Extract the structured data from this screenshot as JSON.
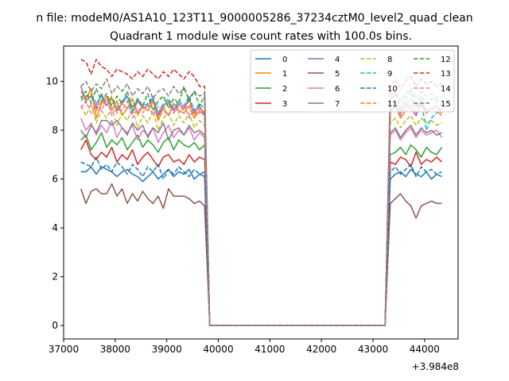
{
  "suptitle": "n file: modeM0/AS1A10_123T11_9000005286_37234cztM0_level2_quad_clean",
  "chart_data": {
    "type": "line",
    "title": "Quadrant 1 module wise count rates with 100.0s bins.",
    "xlabel": "",
    "ylabel": "",
    "x_offset_label": "+3.984e8",
    "xlim": [
      37000,
      44650
    ],
    "ylim": [
      -0.55,
      11.45
    ],
    "xticks": [
      37000,
      38000,
      39000,
      40000,
      41000,
      42000,
      43000,
      44000
    ],
    "yticks": [
      0,
      2,
      4,
      6,
      8,
      10
    ],
    "grid": false,
    "legend_position": "top-right",
    "legend_columns": 4,
    "segments": [
      {
        "x_start": 37334,
        "count": 25,
        "step": 100
      },
      {
        "x_start": 43334,
        "count": 11,
        "step": 100
      }
    ],
    "gap_x": [
      39834,
      43234
    ],
    "gap_value": 0,
    "series": [
      {
        "name": "0",
        "color": "#1f77b4",
        "dash": "solid",
        "values": [
          6.3,
          6.3,
          6.5,
          6.2,
          6.5,
          6.4,
          6.3,
          6.1,
          6.3,
          6.4,
          6.2,
          6.1,
          5.9,
          6.1,
          6.3,
          6.0,
          6.2,
          6.4,
          6.1,
          6.3,
          6.2,
          6.4,
          6.0,
          6.2,
          6.1,
          6.0,
          6.2,
          6.3,
          6.1,
          6.4,
          6.2,
          6.1,
          6.3,
          6.0,
          6.2,
          6.1
        ]
      },
      {
        "name": "1",
        "color": "#ff7f0e",
        "dash": "solid",
        "values": [
          9.6,
          9.3,
          9.7,
          8.5,
          9.1,
          9.4,
          8.8,
          9.2,
          8.6,
          8.9,
          9.3,
          8.7,
          9.0,
          8.8,
          9.2,
          8.4,
          8.9,
          8.6,
          9.1,
          8.8,
          8.7,
          9.0,
          8.5,
          8.8,
          8.6,
          8.7,
          9.0,
          8.5,
          8.8,
          8.9,
          8.6,
          9.1,
          8.7,
          8.9,
          8.8,
          8.6
        ]
      },
      {
        "name": "2",
        "color": "#2ca02c",
        "dash": "solid",
        "values": [
          7.6,
          7.8,
          7.2,
          7.5,
          7.9,
          7.3,
          7.6,
          7.4,
          7.7,
          7.2,
          7.5,
          7.8,
          7.3,
          7.6,
          7.4,
          7.1,
          7.5,
          7.7,
          7.2,
          7.6,
          7.4,
          7.3,
          7.5,
          7.2,
          7.4,
          7.0,
          7.1,
          7.3,
          7.0,
          7.4,
          7.2,
          6.9,
          7.3,
          7.1,
          7.0,
          7.3
        ]
      },
      {
        "name": "3",
        "color": "#d62728",
        "dash": "solid",
        "values": [
          7.2,
          7.6,
          7.0,
          6.8,
          7.1,
          6.9,
          7.3,
          6.7,
          7.0,
          6.8,
          7.2,
          6.6,
          6.9,
          7.1,
          6.8,
          6.5,
          6.9,
          7.0,
          6.7,
          6.8,
          6.6,
          7.0,
          6.7,
          6.9,
          6.8,
          6.7,
          6.6,
          6.9,
          6.8,
          6.5,
          7.1,
          6.6,
          6.8,
          6.7,
          6.9,
          6.7
        ]
      },
      {
        "name": "4",
        "color": "#9467bd",
        "dash": "solid",
        "values": [
          9.8,
          9.2,
          9.4,
          8.9,
          9.5,
          9.0,
          9.3,
          8.8,
          9.1,
          9.4,
          8.7,
          9.2,
          8.9,
          9.0,
          9.3,
          8.6,
          9.0,
          9.2,
          8.8,
          9.1,
          8.9,
          9.3,
          8.7,
          9.0,
          8.6,
          8.8,
          9.0,
          8.7,
          9.1,
          8.9,
          8.6,
          9.2,
          8.8,
          8.9,
          9.0,
          8.7
        ]
      },
      {
        "name": "5",
        "color": "#8c564b",
        "dash": "solid",
        "values": [
          5.6,
          5.0,
          5.5,
          5.6,
          5.4,
          5.4,
          5.8,
          5.3,
          5.6,
          5.0,
          5.4,
          5.1,
          5.5,
          5.2,
          5.0,
          5.3,
          4.8,
          5.6,
          5.3,
          5.3,
          5.3,
          5.2,
          5.0,
          5.1,
          4.9,
          5.0,
          5.2,
          5.4,
          5.1,
          4.9,
          4.4,
          4.9,
          5.0,
          5.1,
          5.0,
          5.0
        ]
      },
      {
        "name": "6",
        "color": "#e377c2",
        "dash": "solid",
        "values": [
          8.5,
          8.0,
          8.3,
          7.8,
          8.2,
          7.9,
          8.4,
          7.7,
          8.1,
          7.9,
          8.2,
          7.6,
          8.0,
          7.8,
          8.1,
          7.5,
          7.9,
          8.2,
          7.7,
          8.0,
          7.8,
          8.1,
          7.6,
          7.9,
          7.7,
          7.8,
          8.0,
          7.6,
          7.9,
          8.1,
          7.7,
          8.0,
          7.8,
          7.9,
          8.0,
          7.7
        ]
      },
      {
        "name": "7",
        "color": "#7f7f7f",
        "dash": "solid",
        "values": [
          8.0,
          7.7,
          8.2,
          7.9,
          8.4,
          8.4,
          8.2,
          8.4,
          8.1,
          7.8,
          8.3,
          8.0,
          8.2,
          7.7,
          8.1,
          7.9,
          8.3,
          7.6,
          8.0,
          8.1,
          7.8,
          8.2,
          7.9,
          8.0,
          7.8,
          7.9,
          8.1,
          7.7,
          8.0,
          8.2,
          7.8,
          8.1,
          7.9,
          8.0,
          7.8,
          7.9
        ]
      },
      {
        "name": "8",
        "color": "#bcbd22",
        "dash": "dashed",
        "values": [
          9.0,
          8.6,
          9.1,
          8.3,
          8.8,
          8.5,
          8.9,
          8.2,
          8.7,
          8.4,
          8.9,
          8.1,
          8.6,
          8.3,
          8.8,
          8.0,
          8.5,
          8.7,
          8.2,
          8.6,
          8.3,
          8.7,
          8.1,
          8.4,
          8.2,
          8.3,
          8.5,
          8.1,
          8.4,
          8.6,
          8.2,
          8.5,
          8.3,
          8.4,
          8.2,
          8.3
        ]
      },
      {
        "name": "9",
        "color": "#17becf",
        "dash": "dashed",
        "values": [
          9.2,
          9.4,
          9.5,
          9.1,
          9.4,
          9.0,
          9.3,
          8.9,
          9.2,
          9.4,
          8.8,
          9.3,
          9.0,
          9.1,
          9.4,
          8.7,
          9.1,
          9.3,
          8.9,
          9.2,
          9.0,
          9.4,
          8.8,
          9.1,
          8.9,
          9.0,
          9.2,
          8.8,
          9.1,
          9.3,
          8.9,
          9.2,
          8.0,
          8.5,
          8.7,
          8.9
        ]
      },
      {
        "name": "10",
        "color": "#1f77b4",
        "dash": "dashed",
        "values": [
          6.7,
          6.6,
          6.5,
          6.9,
          6.4,
          6.6,
          6.3,
          6.7,
          6.5,
          6.2,
          6.6,
          6.4,
          6.1,
          6.5,
          6.3,
          6.6,
          6.0,
          6.4,
          6.2,
          6.5,
          6.3,
          6.1,
          6.4,
          6.2,
          6.3,
          6.3,
          6.5,
          6.2,
          6.4,
          6.6,
          6.1,
          6.5,
          6.3,
          6.4,
          6.2,
          6.3
        ]
      },
      {
        "name": "11",
        "color": "#ff7f0e",
        "dash": "dashed",
        "values": [
          9.4,
          9.1,
          9.5,
          8.8,
          9.2,
          9.0,
          9.4,
          8.7,
          9.1,
          8.9,
          9.3,
          8.6,
          9.0,
          8.8,
          9.2,
          8.5,
          8.9,
          9.1,
          8.7,
          9.0,
          8.8,
          9.2,
          8.6,
          8.9,
          8.7,
          8.8,
          9.0,
          8.6,
          8.9,
          9.1,
          8.7,
          9.0,
          8.8,
          8.9,
          9.0,
          8.7
        ]
      },
      {
        "name": "12",
        "color": "#2ca02c",
        "dash": "dashed",
        "values": [
          9.3,
          9.6,
          9.1,
          9.7,
          9.2,
          9.5,
          9.0,
          9.4,
          9.1,
          9.6,
          8.9,
          9.3,
          9.0,
          9.5,
          8.8,
          9.2,
          9.4,
          8.9,
          9.3,
          9.1,
          9.8,
          9.2,
          9.6,
          9.0,
          9.4,
          9.2,
          9.5,
          8.9,
          9.3,
          9.6,
          9.0,
          9.4,
          9.1,
          9.3,
          9.2,
          9.0
        ]
      },
      {
        "name": "13",
        "color": "#d62728",
        "dash": "dashed",
        "values": [
          10.9,
          10.8,
          10.3,
          10.9,
          10.6,
          10.5,
          10.2,
          10.5,
          10.4,
          10.3,
          10.1,
          10.4,
          10.2,
          10.5,
          10.3,
          10.1,
          10.4,
          10.2,
          10.5,
          10.3,
          10.1,
          10.4,
          10.2,
          9.8,
          9.8,
          9.8,
          10.1,
          9.7,
          10.0,
          10.2,
          9.8,
          10.1,
          9.9,
          10.0,
          9.8,
          9.9
        ]
      },
      {
        "name": "14",
        "color": "#e377c2",
        "dash": "dashed",
        "values": [
          8.9,
          9.2,
          8.7,
          9.1,
          8.8,
          9.3,
          8.6,
          9.0,
          8.8,
          9.2,
          8.5,
          8.9,
          8.7,
          9.1,
          8.6,
          9.0,
          8.8,
          8.6,
          9.0,
          8.7,
          9.1,
          8.5,
          8.9,
          8.7,
          8.8,
          8.7,
          9.0,
          8.6,
          8.9,
          9.1,
          8.7,
          9.0,
          8.8,
          8.9,
          9.0,
          8.8
        ]
      },
      {
        "name": "15",
        "color": "#7f7f7f",
        "dash": "dashed",
        "values": [
          9.8,
          10.0,
          9.6,
          9.9,
          9.7,
          10.1,
          9.5,
          9.8,
          9.6,
          9.9,
          9.4,
          9.7,
          9.5,
          9.8,
          9.3,
          9.6,
          9.7,
          9.4,
          9.8,
          9.5,
          9.7,
          9.3,
          9.6,
          9.4,
          9.5,
          9.4,
          9.6,
          9.2,
          9.5,
          9.7,
          9.3,
          9.6,
          9.4,
          9.5,
          9.3,
          9.4
        ]
      }
    ]
  }
}
